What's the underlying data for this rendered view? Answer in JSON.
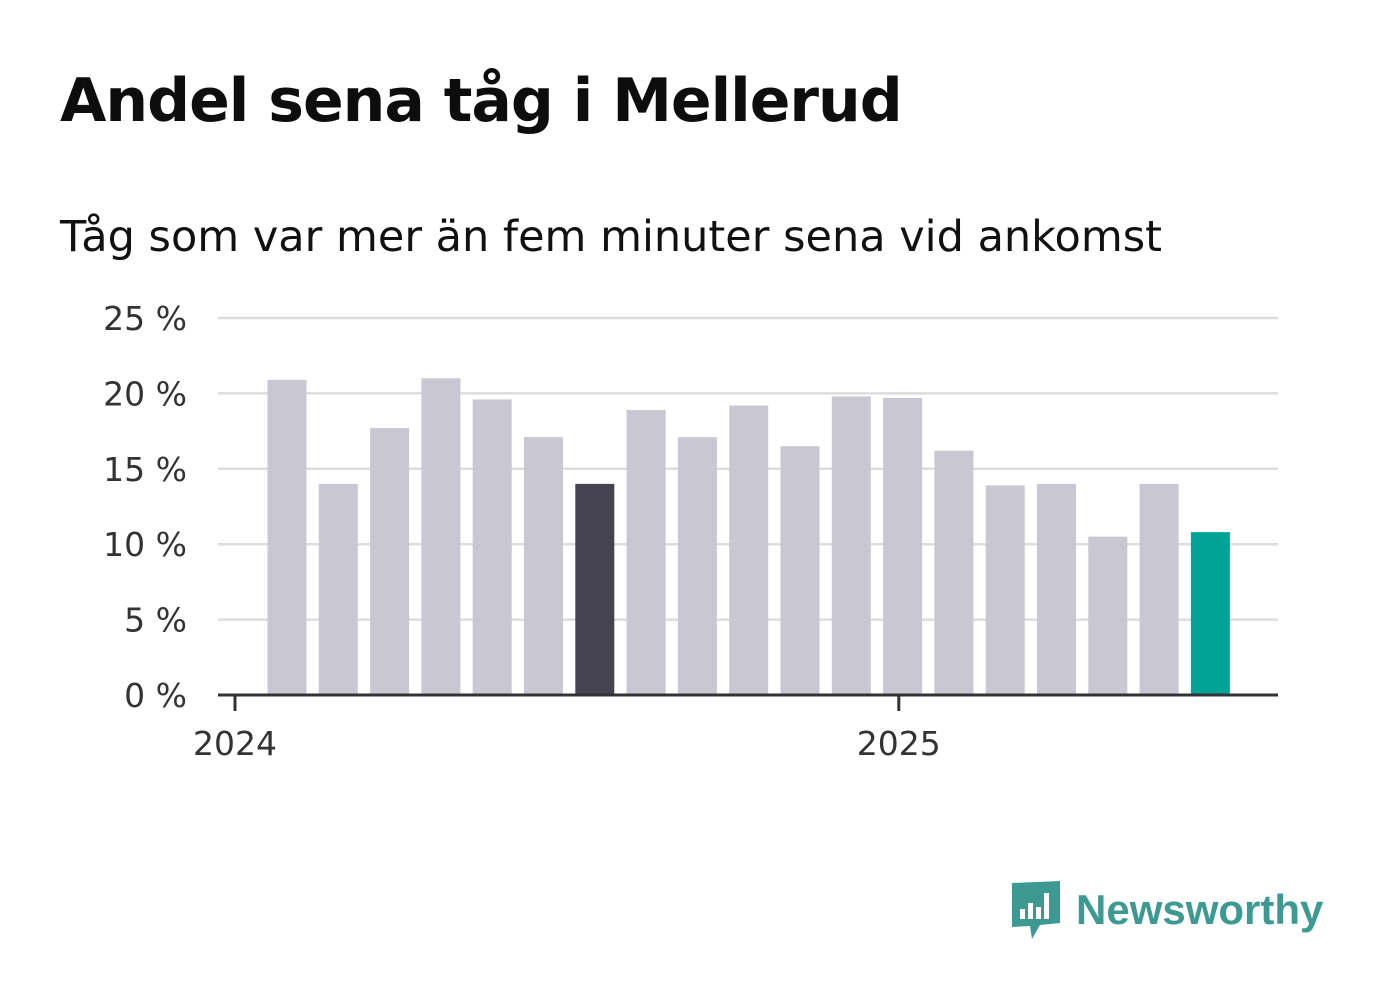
{
  "chart_data": {
    "type": "bar",
    "title": "Andel sena tåg i Mellerud",
    "subtitle": "Tåg som var mer än fem minuter sena vid ankomst",
    "xlabel": "",
    "ylabel": "",
    "ylim": [
      0,
      25
    ],
    "yticks": [
      "0 %",
      "5 %",
      "10 %",
      "15 %",
      "20 %",
      "25 %"
    ],
    "ytick_values": [
      0,
      5,
      10,
      15,
      20,
      25
    ],
    "x_tick_labels": [
      "2024",
      "2025"
    ],
    "categories": [
      "2024-01",
      "2024-02",
      "2024-03",
      "2024-04",
      "2024-05",
      "2024-06",
      "2024-07",
      "2024-08",
      "2024-09",
      "2024-10",
      "2024-11",
      "2024-12",
      "2025-01",
      "2025-02",
      "2025-03",
      "2025-04",
      "2025-05",
      "2025-06",
      "2025-07"
    ],
    "values": [
      20.9,
      14.0,
      17.7,
      21.0,
      19.6,
      17.1,
      14.0,
      18.9,
      17.1,
      19.2,
      16.5,
      19.8,
      19.7,
      16.2,
      13.9,
      14.0,
      10.5,
      14.0,
      10.8
    ],
    "highlight": {
      "2024-07": "#44434f",
      "2025-07": "#00a396"
    },
    "bar_color": "#c9c7d2",
    "grid": true,
    "legend": "none"
  },
  "brand": {
    "name": "Newsworthy",
    "logo_icon": "newsworthy-logo-icon",
    "color": "#3d9a93"
  }
}
